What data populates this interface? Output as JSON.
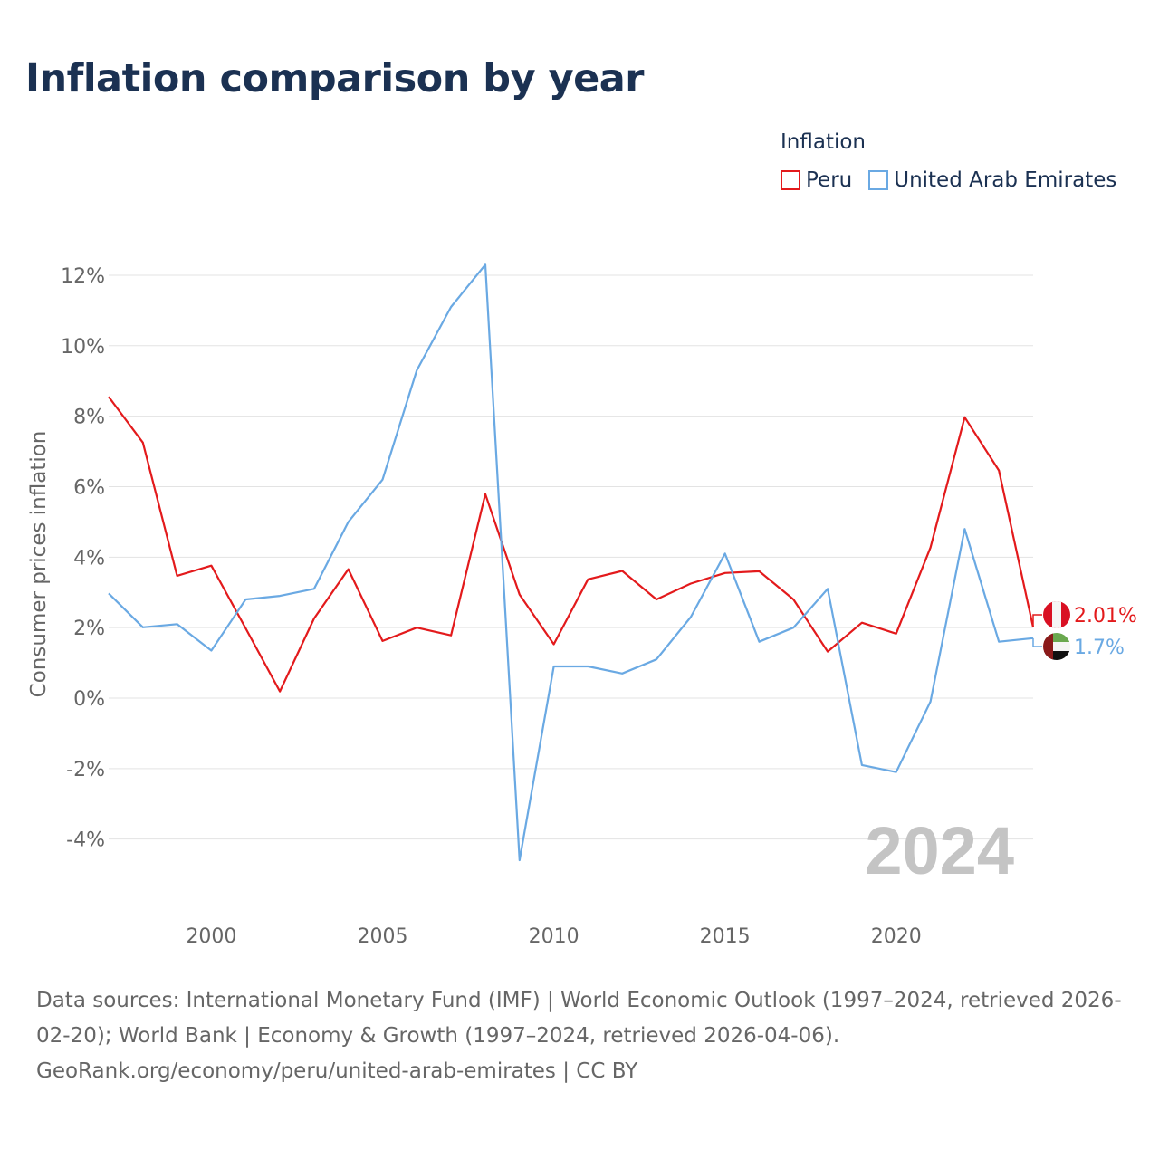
{
  "chart_data": {
    "type": "line",
    "title": "Inflation comparison by year",
    "legend_title": "Inflation",
    "ylabel": "Consumer prices inflation",
    "xlabel": "",
    "ylim": [
      -5.5,
      13.5
    ],
    "xlim": [
      1997,
      2024
    ],
    "yticks": [
      -4,
      -2,
      0,
      2,
      4,
      6,
      8,
      10,
      12
    ],
    "ytick_labels": [
      "-4%",
      "-2%",
      "0%",
      "2%",
      "4%",
      "6%",
      "8%",
      "10%",
      "12%"
    ],
    "xticks": [
      2000,
      2005,
      2010,
      2015,
      2020
    ],
    "xtick_labels": [
      "2000",
      "2005",
      "2010",
      "2015",
      "2020"
    ],
    "year_watermark": "2024",
    "x": [
      1997,
      1998,
      1999,
      2000,
      2001,
      2002,
      2003,
      2004,
      2005,
      2006,
      2007,
      2008,
      2009,
      2010,
      2011,
      2012,
      2013,
      2014,
      2015,
      2016,
      2017,
      2018,
      2019,
      2020,
      2021,
      2022,
      2023,
      2024
    ],
    "series": [
      {
        "name": "Peru",
        "color": "#e31a1c",
        "end_label": "2.01%",
        "values": [
          8.55,
          7.25,
          3.47,
          3.76,
          1.98,
          0.19,
          2.26,
          3.66,
          1.62,
          2.0,
          1.78,
          5.79,
          2.94,
          1.53,
          3.37,
          3.61,
          2.8,
          3.25,
          3.55,
          3.6,
          2.8,
          1.32,
          2.14,
          1.83,
          4.27,
          7.97,
          6.46,
          2.01
        ]
      },
      {
        "name": "United Arab Emirates",
        "color": "#6aa9e3",
        "end_label": "1.7%",
        "values": [
          2.97,
          2.01,
          2.1,
          1.35,
          2.8,
          2.9,
          3.1,
          5.0,
          6.2,
          9.3,
          11.1,
          12.3,
          -4.6,
          0.9,
          0.9,
          0.7,
          1.1,
          2.3,
          4.1,
          1.6,
          2.0,
          3.1,
          -1.9,
          -2.1,
          -0.1,
          4.8,
          1.6,
          1.7
        ]
      }
    ],
    "grid": true,
    "legend_position": "top-right"
  },
  "source": {
    "line1": "Data sources: International Monetary Fund (IMF) | World Economic Outlook (1997–2024, retrieved 2026-02-20); World Bank | Economy & Growth (1997–2024, retrieved 2026-04-06).",
    "line2": "GeoRank.org/economy/peru/united-arab-emirates | CC BY"
  }
}
